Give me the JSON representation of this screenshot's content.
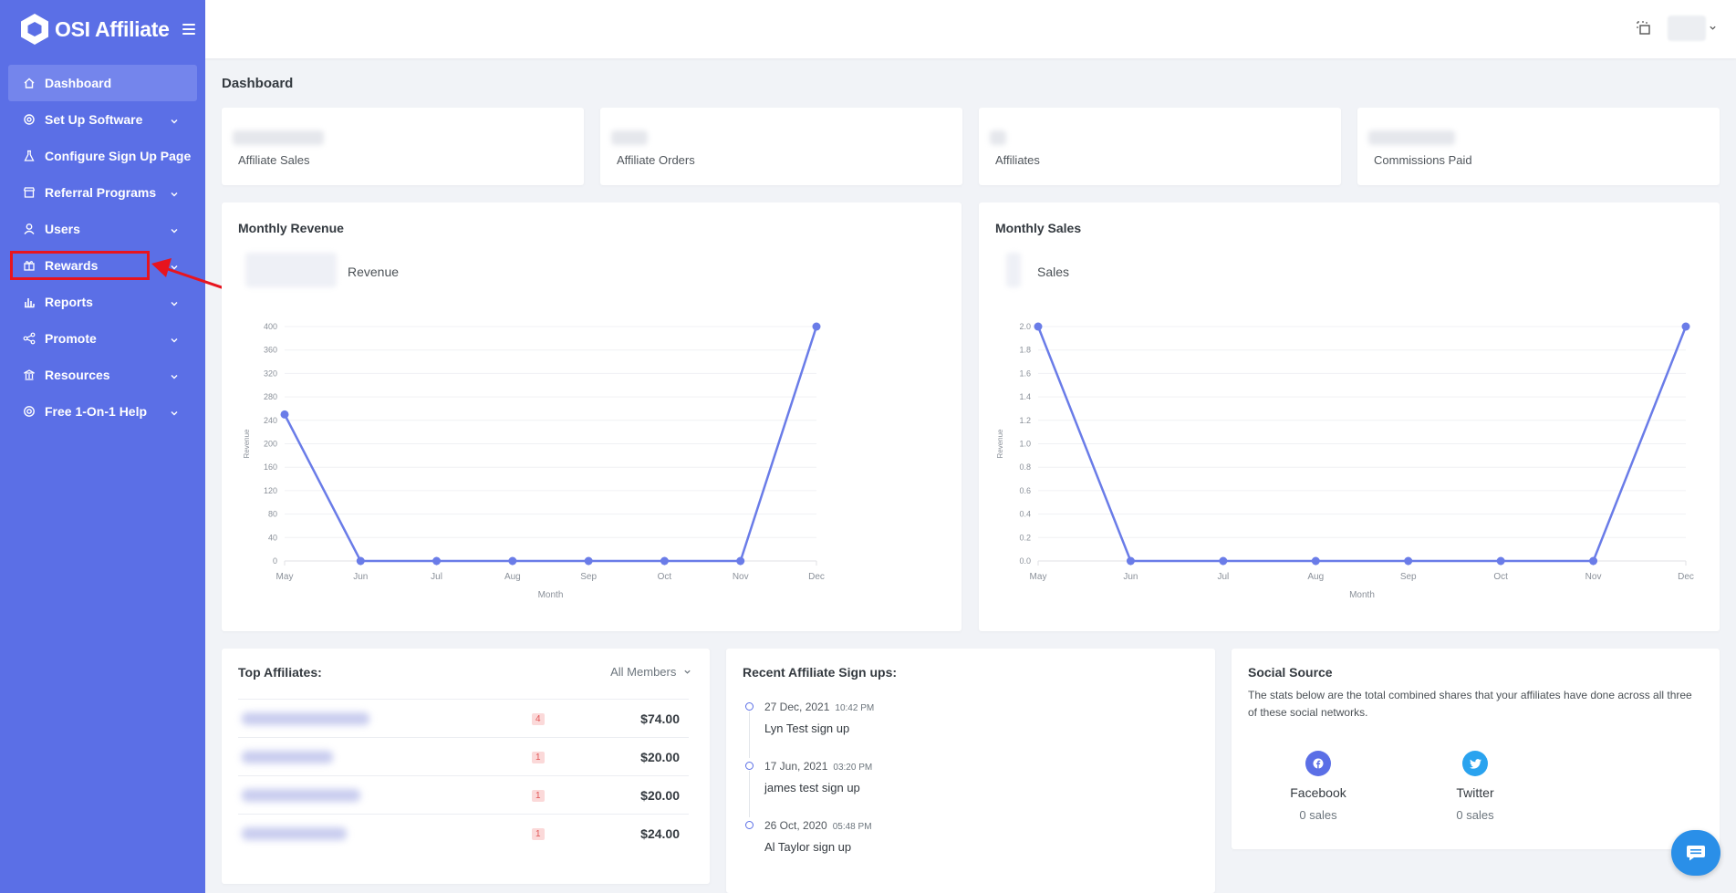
{
  "brand": {
    "name": "OSI Affiliate"
  },
  "sidebar": {
    "items": [
      {
        "label": "Dashboard",
        "icon": "home-icon",
        "active": true,
        "chevron": false
      },
      {
        "label": "Set Up Software",
        "icon": "gear-icon",
        "chevron": true
      },
      {
        "label": "Configure Sign Up Page",
        "icon": "flask-icon",
        "chevron": false
      },
      {
        "label": "Referral Programs",
        "icon": "store-icon",
        "chevron": true
      },
      {
        "label": "Users",
        "icon": "user-icon",
        "chevron": true
      },
      {
        "label": "Rewards",
        "icon": "gift-icon",
        "chevron": true
      },
      {
        "label": "Reports",
        "icon": "bar-chart-icon",
        "chevron": true
      },
      {
        "label": "Promote",
        "icon": "share-icon",
        "chevron": true
      },
      {
        "label": "Resources",
        "icon": "bank-icon",
        "chevron": true
      },
      {
        "label": "Free 1-On-1 Help",
        "icon": "lifebuoy-icon",
        "chevron": true
      }
    ]
  },
  "page": {
    "title": "Dashboard"
  },
  "stats": [
    {
      "label": "Affiliate Sales"
    },
    {
      "label": "Affiliate Orders"
    },
    {
      "label": "Affiliates"
    },
    {
      "label": "Commissions Paid"
    }
  ],
  "colors": {
    "accent": "#5b6fe6",
    "sidebar": "#5b6fe6",
    "highlight": "#e8141e",
    "line": "#6a7ce8",
    "facebook": "#5b6fe6",
    "twitter": "#2aa3ef"
  },
  "chart_data": [
    {
      "type": "line",
      "title": "Monthly Revenue",
      "legend": [
        "Revenue"
      ],
      "xlabel": "Month",
      "ylabel": "Revenue",
      "categories": [
        "May",
        "Jun",
        "Jul",
        "Aug",
        "Sep",
        "Oct",
        "Nov",
        "Dec"
      ],
      "series": [
        {
          "name": "Revenue",
          "values": [
            250,
            0,
            0,
            0,
            0,
            0,
            0,
            400
          ]
        }
      ],
      "ylim": [
        0,
        400
      ],
      "yticks": [
        "0",
        "40",
        "80",
        "120",
        "160",
        "200",
        "240",
        "280",
        "320",
        "360",
        "400"
      ],
      "grid": true
    },
    {
      "type": "line",
      "title": "Monthly Sales",
      "legend": [
        "Sales"
      ],
      "xlabel": "Month",
      "ylabel": "Revenue",
      "categories": [
        "May",
        "Jun",
        "Jul",
        "Aug",
        "Sep",
        "Oct",
        "Nov",
        "Dec"
      ],
      "series": [
        {
          "name": "Sales",
          "values": [
            2.0,
            0,
            0,
            0,
            0,
            0,
            0,
            2.0
          ]
        }
      ],
      "ylim": [
        0,
        2.0
      ],
      "yticks": [
        "0.0",
        "0.2",
        "0.4",
        "0.6",
        "0.8",
        "1.0",
        "1.2",
        "1.4",
        "1.6",
        "1.8",
        "2.0"
      ],
      "grid": true
    }
  ],
  "top_affiliates": {
    "title": "Top Affiliates:",
    "filter": "All Members",
    "rows": [
      {
        "badge": "4",
        "amount": "$74.00"
      },
      {
        "badge": "1",
        "amount": "$20.00"
      },
      {
        "badge": "1",
        "amount": "$20.00"
      },
      {
        "badge": "1",
        "amount": "$24.00"
      }
    ]
  },
  "signups": {
    "title": "Recent Affiliate Sign ups:",
    "items": [
      {
        "date": "27 Dec, 2021",
        "time": "10:42 PM",
        "text": "Lyn Test sign up"
      },
      {
        "date": "17 Jun, 2021",
        "time": "03:20 PM",
        "text": "james test sign up"
      },
      {
        "date": "26 Oct, 2020",
        "time": "05:48 PM",
        "text": "Al Taylor sign up"
      }
    ]
  },
  "social": {
    "title": "Social Source",
    "description": "The stats below are the total combined shares that your affiliates have done across all three of these social networks.",
    "networks": [
      {
        "name": "Facebook",
        "count": "0 sales",
        "icon": "facebook-icon"
      },
      {
        "name": "Twitter",
        "count": "0 sales",
        "icon": "twitter-icon"
      }
    ]
  }
}
